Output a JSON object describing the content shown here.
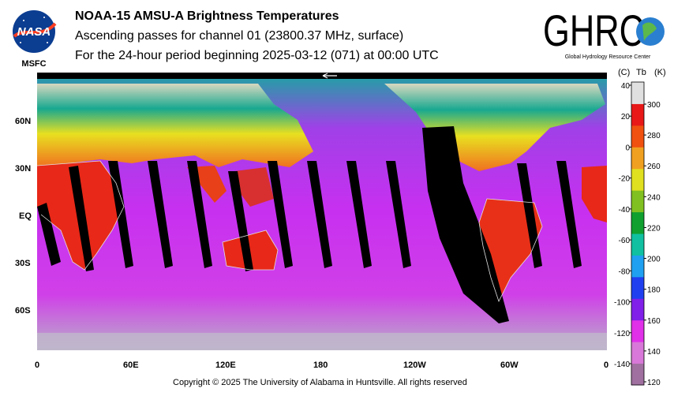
{
  "header": {
    "title": "NOAA-15 AMSU-A Brightness Temperatures",
    "subtitle1": "Ascending passes for channel 01 (23800.37 MHz, surface)",
    "subtitle2": "For the 24-hour period beginning 2025-03-12 (071) at 00:00 UTC"
  },
  "logos": {
    "nasa_text": "NASA",
    "nasa_sub": "MSFC",
    "ghrc_text": "GHRC",
    "ghrc_sub": "Global Hydrology Resource Center"
  },
  "map": {
    "lat_labels": [
      "60N",
      "30N",
      "EQ",
      "30S",
      "60S"
    ],
    "lon_labels": [
      "0",
      "60E",
      "120E",
      "180",
      "120W",
      "60W",
      "0"
    ],
    "colors": {
      "ocean": "#c830f0",
      "land_warm": "#e82818",
      "mid": "#18a8a0",
      "cold_land": "#e8e020",
      "ice": "#d8d8c0",
      "gap": "#000000"
    }
  },
  "colorbar": {
    "header_c": "(C)",
    "header_tb": "Tb",
    "header_k": "(K)",
    "celsius_ticks": [
      "40",
      "20",
      "0",
      "-20",
      "-40",
      "-60",
      "-80",
      "-100",
      "-120",
      "-140"
    ],
    "kelvin_ticks": [
      "300",
      "280",
      "260",
      "240",
      "220",
      "200",
      "180",
      "160",
      "140",
      "120"
    ],
    "colors": [
      "#a070a0",
      "#d878d8",
      "#e030e8",
      "#8020e8",
      "#2040f0",
      "#20a0f0",
      "#10c0a0",
      "#10a030",
      "#80c020",
      "#e0e020",
      "#f0a020",
      "#f05010",
      "#e81818",
      "#e0e0e0"
    ]
  },
  "footer": {
    "copyright": "Copyright © 2025 The University of Alabama in Huntsville.  All rights reserved"
  }
}
